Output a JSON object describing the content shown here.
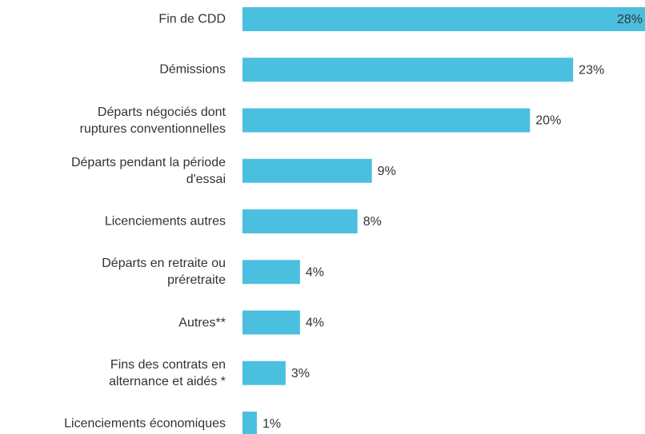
{
  "chart_data": {
    "type": "bar",
    "orientation": "horizontal",
    "categories": [
      "Fin de CDD",
      "Démissions",
      "Départs négociés dont\nruptures conventionnelles",
      "Départs pendant la période\nd'essai",
      "Licenciements autres",
      "Départs en retraite ou\npréretraite",
      "Autres**",
      "Fins des contrats en\nalternance et aidés *",
      "Licenciements économiques"
    ],
    "values": [
      28,
      23,
      20,
      9,
      8,
      4,
      4,
      3,
      1
    ],
    "value_labels": [
      "28%",
      "23%",
      "20%",
      "9%",
      "8%",
      "4%",
      "4%",
      "3%",
      "1%"
    ],
    "color": "#4bbfe0",
    "xlim": [
      0,
      28
    ]
  }
}
